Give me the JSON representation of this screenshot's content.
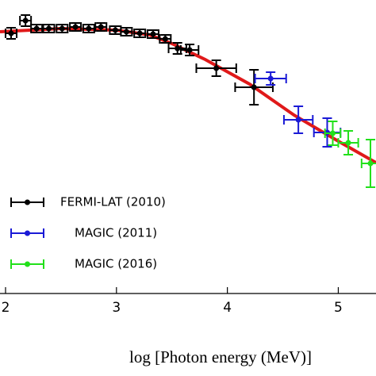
{
  "chart_data": {
    "type": "errorbar",
    "xlabel": "log [Photon energy (MeV)]",
    "xlim": [
      1.95,
      5.34
    ],
    "ylim": [
      0,
      3.7
    ],
    "xticks": [
      2,
      3,
      4,
      5
    ],
    "legend": "lower left",
    "fit": {
      "color": "#e0191a",
      "x": [
        1.95,
        2.5,
        3.0,
        3.3,
        3.5,
        3.8,
        4.2,
        4.6,
        5.0,
        5.34
      ],
      "values": [
        3.3,
        3.34,
        3.32,
        3.26,
        3.15,
        2.95,
        2.64,
        2.25,
        1.92,
        1.65
      ]
    },
    "series": [
      {
        "name": "FERMI-LAT (2010)",
        "color": "#000000",
        "x": [
          2.05,
          2.18,
          2.28,
          2.39,
          2.51,
          2.63,
          2.75,
          2.86,
          2.99,
          3.09,
          3.21,
          3.33,
          3.44,
          3.55,
          3.66,
          3.9,
          4.24
        ],
        "values": [
          3.28,
          3.44,
          3.34,
          3.34,
          3.34,
          3.36,
          3.34,
          3.36,
          3.32,
          3.3,
          3.28,
          3.27,
          3.21,
          3.09,
          3.07,
          2.84,
          2.6
        ],
        "xerr": [
          0.05,
          0.05,
          0.05,
          0.05,
          0.05,
          0.05,
          0.05,
          0.05,
          0.05,
          0.05,
          0.05,
          0.05,
          0.05,
          0.08,
          0.08,
          0.18,
          0.17
        ],
        "yerr": [
          0.07,
          0.07,
          0.05,
          0.05,
          0.05,
          0.05,
          0.05,
          0.05,
          0.05,
          0.05,
          0.05,
          0.05,
          0.05,
          0.07,
          0.07,
          0.1,
          0.22
        ]
      },
      {
        "name": "MAGIC (2011)",
        "color": "#1a1ad6",
        "x": [
          4.39,
          4.64,
          4.9
        ],
        "values": [
          2.71,
          2.19,
          2.03
        ],
        "xerr": [
          0.14,
          0.13,
          0.12
        ],
        "yerr": [
          0.08,
          0.17,
          0.18
        ]
      },
      {
        "name": "MAGIC (2016)",
        "color": "#22e01a",
        "x": [
          4.95,
          5.09,
          5.29
        ],
        "values": [
          2.02,
          1.9,
          1.64
        ],
        "xerr": [
          0.07,
          0.09,
          0.08
        ],
        "yerr": [
          0.15,
          0.15,
          0.3
        ]
      }
    ]
  }
}
